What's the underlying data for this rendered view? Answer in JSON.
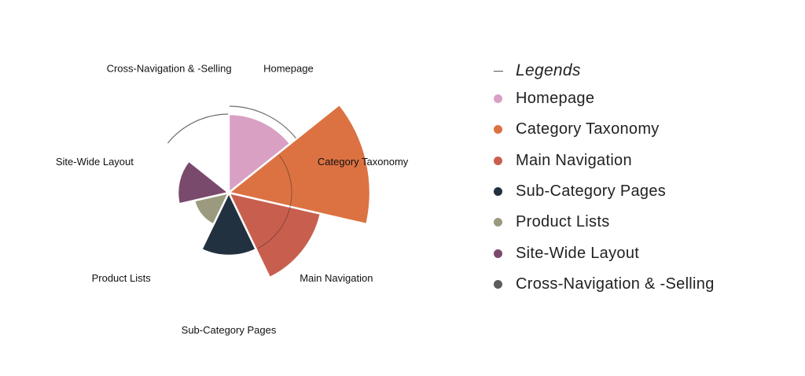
{
  "chart_data": {
    "type": "polar-area",
    "categories": [
      "Homepage",
      "Category Taxonomy",
      "Main Navigation",
      "Sub-Category Pages",
      "Product Lists",
      "Site-Wide Layout",
      "Cross-Navigation & -Selling"
    ],
    "values": [
      100,
      180,
      120,
      80,
      45,
      65,
      0
    ],
    "reference_values": [
      110,
      null,
      null,
      null,
      null,
      null,
      100
    ],
    "colors": [
      "#d9a0c4",
      "#dc7242",
      "#c85f4e",
      "#223140",
      "#9b9a7e",
      "#7a4a6c",
      "#5c5c5c"
    ],
    "legend_position": "right"
  },
  "legend": {
    "title": "Legends"
  }
}
